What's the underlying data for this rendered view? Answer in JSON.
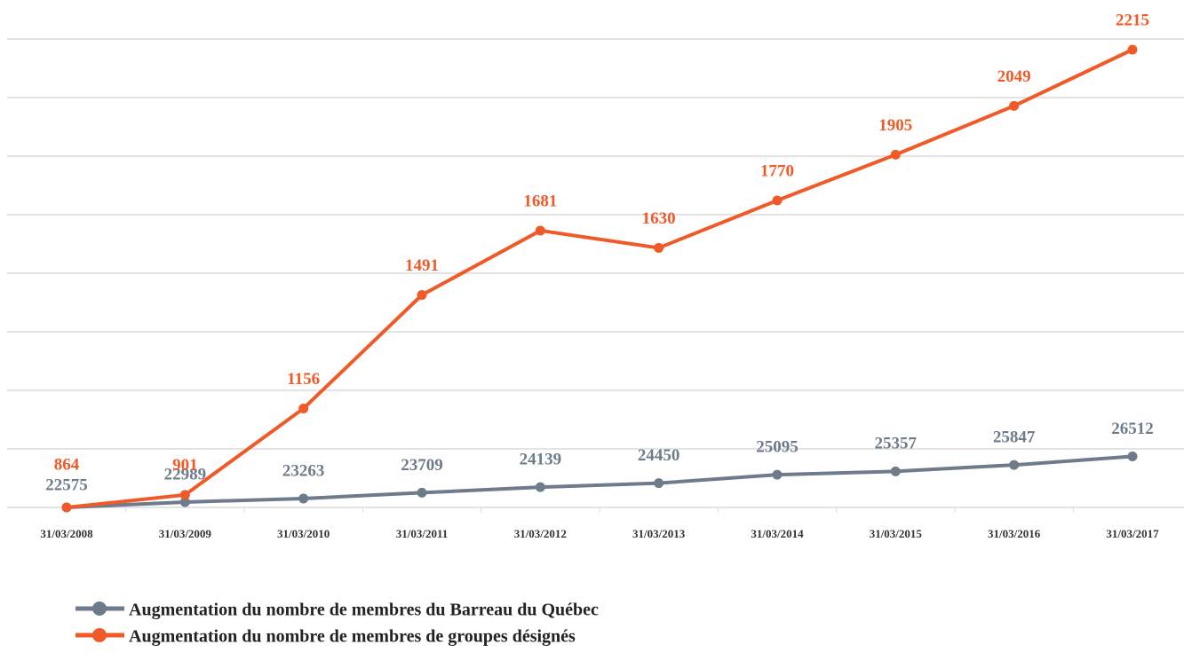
{
  "chart_data": {
    "type": "line",
    "x": [
      "31/03/2008",
      "31/03/2009",
      "31/03/2010",
      "31/03/2011",
      "31/03/2012",
      "31/03/2013",
      "31/03/2014",
      "31/03/2015",
      "31/03/2016",
      "31/03/2017"
    ],
    "series": [
      {
        "name": "Augmentation du nombre de membres du Barreau du Québec",
        "color": "#6e7b8b",
        "axis": "y2",
        "values": [
          22575,
          22989,
          23263,
          23709,
          24139,
          24450,
          25095,
          25357,
          25847,
          26512
        ]
      },
      {
        "name": "Augmentation du nombre de membres de groupes désignés",
        "color": "#f05a28",
        "values": [
          864,
          901,
          1156,
          1491,
          1681,
          1630,
          1770,
          1905,
          2049,
          2215
        ]
      }
    ],
    "ylim": [
      864,
      2246.4
    ],
    "y2lim": [
      22575,
      58695
    ],
    "grid": true
  }
}
